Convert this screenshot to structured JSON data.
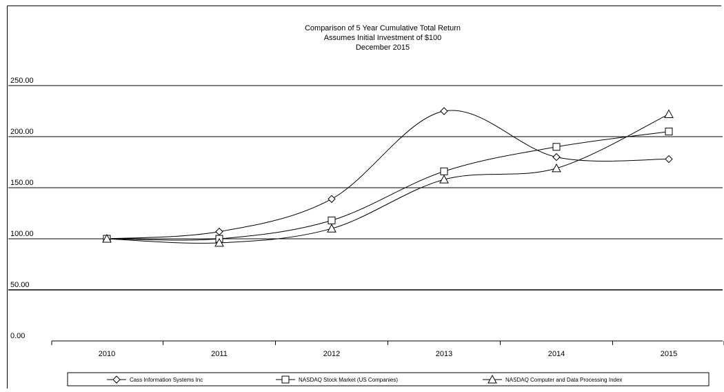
{
  "chart_data": {
    "type": "line",
    "title_lines": [
      "Comparison  of 5 Year Cumulative  Total Return",
      "Assumes Initial Investment  of $100",
      "December  2015"
    ],
    "categories": [
      "2010",
      "2011",
      "2012",
      "2013",
      "2014",
      "2015"
    ],
    "ylim": [
      0,
      250
    ],
    "y_ticks": [
      "0.00",
      "50.00",
      "100.00",
      "150.00",
      "200.00",
      "250.00"
    ],
    "grid": "horizontal",
    "legend_position": "bottom",
    "series": [
      {
        "name": "Cass Information Systems Inc",
        "marker": "diamond",
        "values": [
          100,
          107,
          139,
          225,
          180,
          178
        ]
      },
      {
        "name": "NASDAQ Stock Market (US Companies)",
        "marker": "square",
        "values": [
          100,
          100,
          118,
          166,
          190,
          205
        ]
      },
      {
        "name": "NASDAQ Computer and Data Processing Index",
        "marker": "triangle",
        "values": [
          100,
          96,
          110,
          158,
          169,
          222
        ]
      }
    ]
  }
}
